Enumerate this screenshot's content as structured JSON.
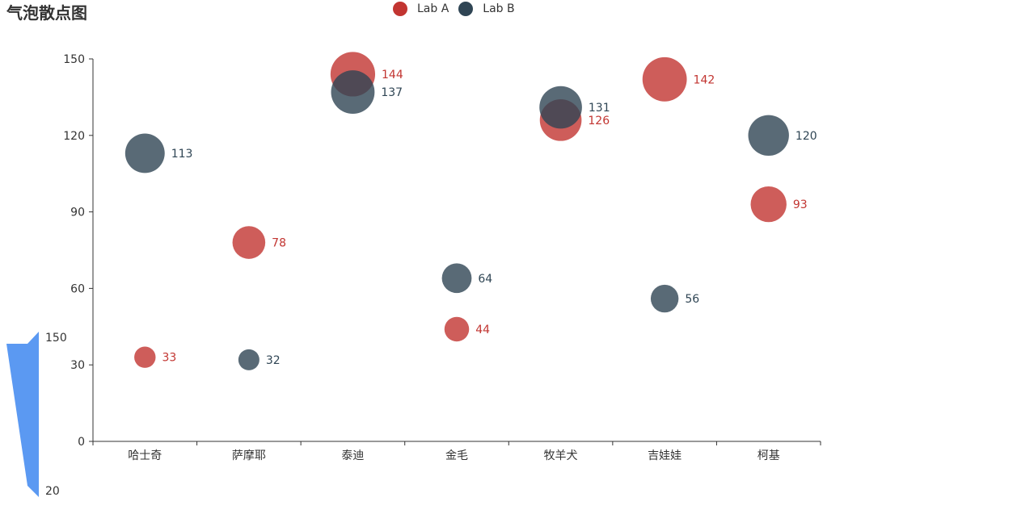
{
  "chart_data": {
    "type": "scatter",
    "title": "气泡散点图",
    "categories": [
      "哈士奇",
      "萨摩耶",
      "泰迪",
      "金毛",
      "牧羊犬",
      "吉娃娃",
      "柯基"
    ],
    "ylim": [
      0,
      150
    ],
    "yticks": [
      0,
      30,
      60,
      90,
      120,
      150
    ],
    "series": [
      {
        "name": "Lab A",
        "color": "#c23531",
        "values": [
          33,
          78,
          144,
          44,
          126,
          142,
          93
        ]
      },
      {
        "name": "Lab B",
        "color": "#2f4554",
        "values": [
          113,
          32,
          137,
          64,
          131,
          56,
          120
        ]
      }
    ],
    "visual_map": {
      "min": 20,
      "max": 150,
      "min_label": "20",
      "max_label": "150",
      "color": "#5b99f2"
    },
    "legend_position": "top-center"
  }
}
